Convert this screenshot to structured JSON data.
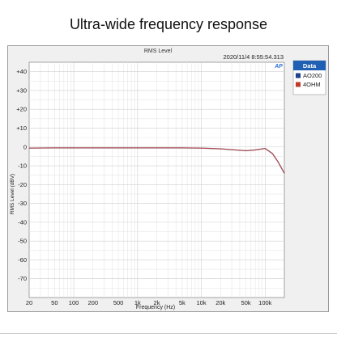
{
  "page": {
    "headline": "Ultra-wide frequency response"
  },
  "window": {
    "title": "RMS Level",
    "timestamp": "2020/11/4 8:55:54.313",
    "logo": "AP",
    "logo_color": "#2f6fd6"
  },
  "legend": {
    "title": "Data",
    "title_bg": "#1f5fb4",
    "entries": [
      {
        "label": "AO200",
        "color": "#1f3f8f"
      },
      {
        "label": "4OHM",
        "color": "#c0392b"
      }
    ]
  },
  "chart_data": {
    "type": "line",
    "title": "RMS Level",
    "xlabel": "Frequency (Hz)",
    "ylabel": "RMS Level (dBV)",
    "xscale": "log",
    "xlim": [
      20,
      200000
    ],
    "ylim": [
      -80,
      45
    ],
    "grid": true,
    "legend_position": "right",
    "x_ticks": [
      20,
      50,
      100,
      200,
      500,
      1000,
      2000,
      5000,
      10000,
      20000,
      50000,
      100000
    ],
    "x_tick_labels": [
      "20",
      "50",
      "100",
      "200",
      "500",
      "1k",
      "2k",
      "5k",
      "10k",
      "20k",
      "50k",
      "100k"
    ],
    "y_ticks": [
      40,
      30,
      20,
      10,
      0,
      -10,
      -20,
      -30,
      -40,
      -50,
      -60,
      -70
    ],
    "y_tick_labels": [
      "+40",
      "+30",
      "+20",
      "+10",
      "0",
      "-10",
      "-20",
      "-30",
      "-40",
      "-50",
      "-60",
      "-70"
    ],
    "series": [
      {
        "name": "AO200",
        "color": "#1f3f8f",
        "points": [
          [
            20,
            -0.6
          ],
          [
            50,
            -0.5
          ],
          [
            100,
            -0.5
          ],
          [
            200,
            -0.5
          ],
          [
            500,
            -0.5
          ],
          [
            1000,
            -0.5
          ],
          [
            2000,
            -0.5
          ],
          [
            5000,
            -0.5
          ],
          [
            10000,
            -0.6
          ],
          [
            20000,
            -1.0
          ],
          [
            50000,
            -2.0
          ],
          [
            70000,
            -1.6
          ],
          [
            100000,
            -0.8
          ],
          [
            130000,
            -3.5
          ],
          [
            160000,
            -8
          ],
          [
            200000,
            -14
          ]
        ]
      },
      {
        "name": "4OHM",
        "color": "#c0392b",
        "points": [
          [
            20,
            -0.6
          ],
          [
            50,
            -0.5
          ],
          [
            100,
            -0.5
          ],
          [
            200,
            -0.5
          ],
          [
            500,
            -0.5
          ],
          [
            1000,
            -0.5
          ],
          [
            2000,
            -0.5
          ],
          [
            5000,
            -0.5
          ],
          [
            10000,
            -0.6
          ],
          [
            20000,
            -1.0
          ],
          [
            50000,
            -2.0
          ],
          [
            70000,
            -1.6
          ],
          [
            100000,
            -0.8
          ],
          [
            130000,
            -3.5
          ],
          [
            160000,
            -8
          ],
          [
            200000,
            -14
          ]
        ]
      }
    ]
  }
}
